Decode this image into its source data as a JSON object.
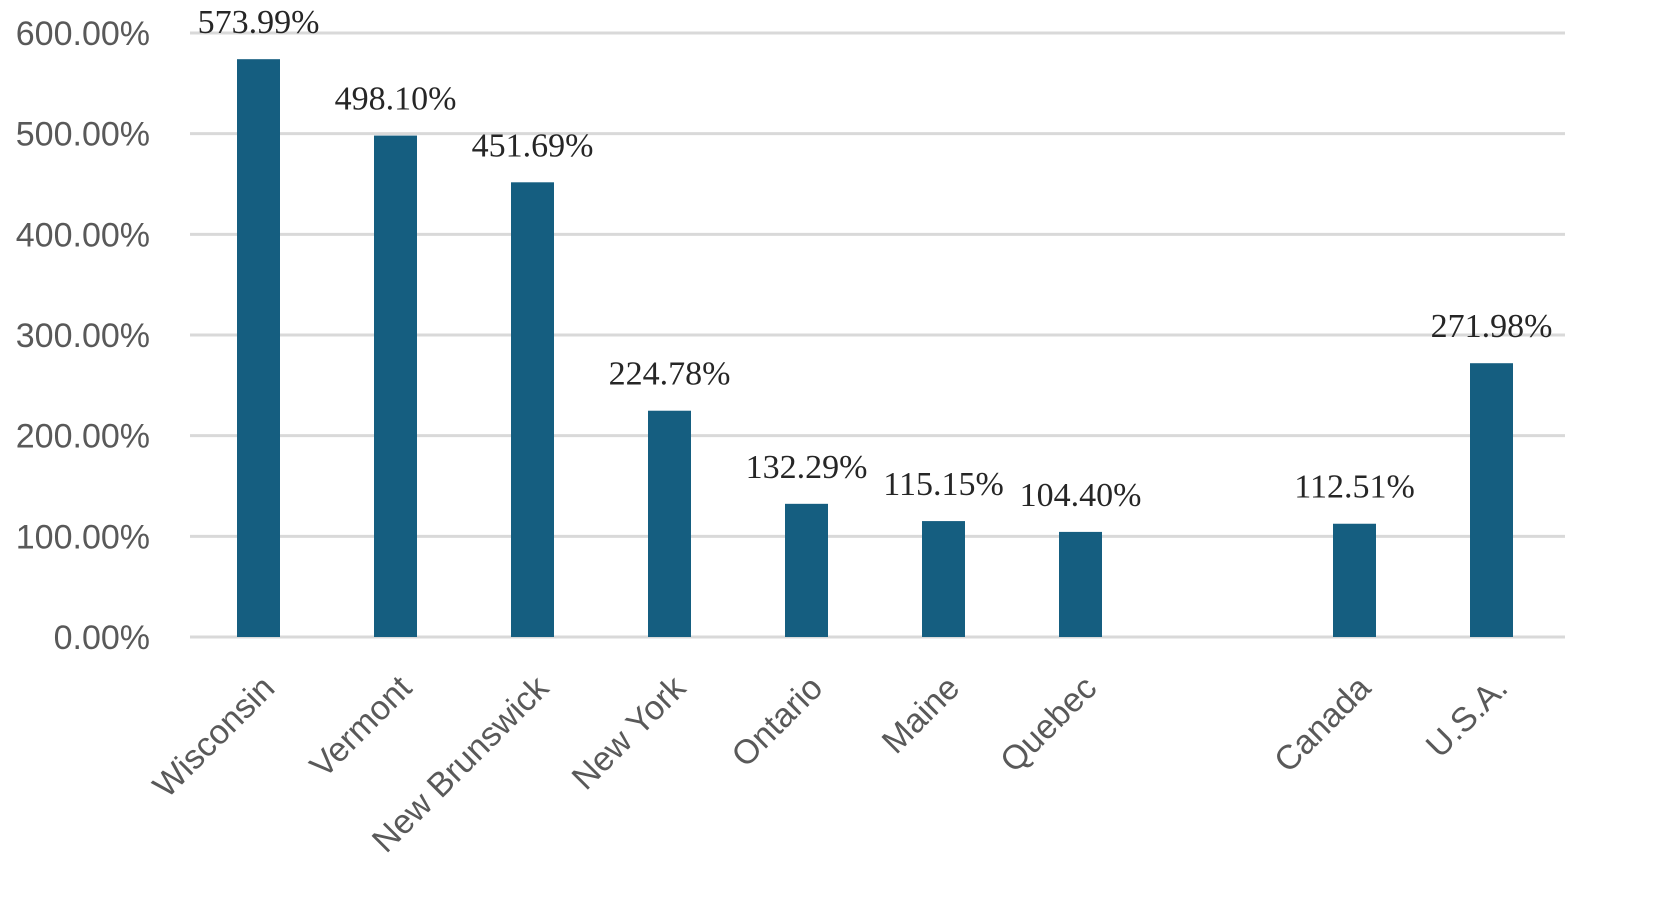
{
  "chart_data": {
    "type": "bar",
    "categories": [
      "Wisconsin",
      "Vermont",
      "New Brunswick",
      "New York",
      "Ontario",
      "Maine",
      "Quebec",
      "",
      "Canada",
      "U.S.A."
    ],
    "values": [
      573.99,
      498.1,
      451.69,
      224.78,
      132.29,
      115.15,
      104.4,
      null,
      112.51,
      271.98
    ],
    "data_labels": [
      "573.99%",
      "498.10%",
      "451.69%",
      "224.78%",
      "132.29%",
      "115.15%",
      "104.40%",
      "",
      "112.51%",
      "271.98%"
    ],
    "ylim": [
      0,
      600
    ],
    "yticks": [
      0,
      100,
      200,
      300,
      400,
      500,
      600
    ],
    "ytick_labels": [
      "0.00%",
      "100.00%",
      "200.00%",
      "300.00%",
      "400.00%",
      "500.00%",
      "600.00%"
    ],
    "title": "",
    "xlabel": "",
    "ylabel": "",
    "grid": true,
    "legend": "none",
    "colors": {
      "bar": "#155e80",
      "grid": "#d9d9d9",
      "tick_text": "#595959",
      "label_text": "#262626"
    }
  }
}
